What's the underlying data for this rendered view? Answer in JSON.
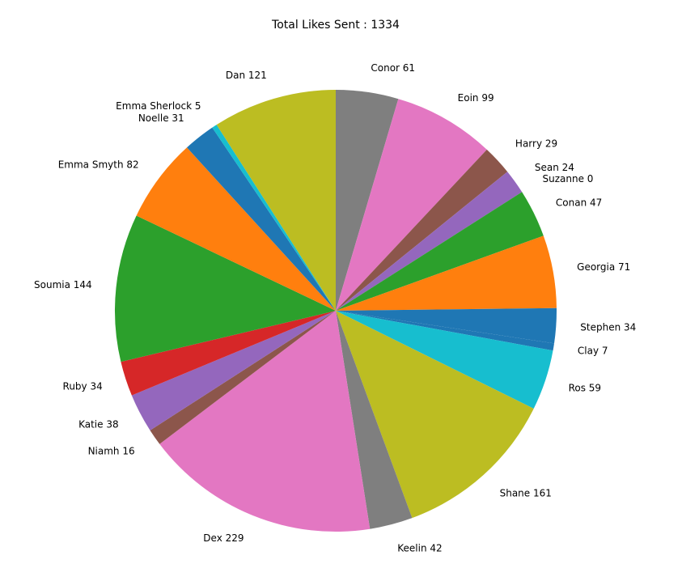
{
  "chart_data": {
    "type": "pie",
    "title": "Total Likes Sent : 1334",
    "start_angle_deg": 90,
    "direction": "clockwise",
    "slices": [
      {
        "name": "Conor",
        "value": 61,
        "label": "Conor 61",
        "color": "#7f7f7f"
      },
      {
        "name": "Eoin",
        "value": 99,
        "label": "Eoin 99",
        "color": "#e377c2"
      },
      {
        "name": "Harry",
        "value": 29,
        "label": "Harry 29",
        "color": "#8c564b"
      },
      {
        "name": "Sean",
        "value": 24,
        "label": "Sean 24",
        "color": "#9467bd"
      },
      {
        "name": "Suzanne",
        "value": 0,
        "label": "Suzanne 0",
        "color": "#d62728"
      },
      {
        "name": "Conan",
        "value": 47,
        "label": "Conan 47",
        "color": "#2ca02c"
      },
      {
        "name": "Georgia",
        "value": 71,
        "label": "Georgia 71",
        "color": "#ff7f0e"
      },
      {
        "name": "Stephen",
        "value": 34,
        "label": "Stephen 34",
        "color": "#1f77b4"
      },
      {
        "name": "Clay",
        "value": 7,
        "label": "Clay 7",
        "color": "#1f77b4"
      },
      {
        "name": "Ros",
        "value": 59,
        "label": "Ros 59",
        "color": "#17becf"
      },
      {
        "name": "Shane",
        "value": 161,
        "label": "Shane 161",
        "color": "#bcbd22"
      },
      {
        "name": "Keelin",
        "value": 42,
        "label": "Keelin 42",
        "color": "#7f7f7f"
      },
      {
        "name": "Dex",
        "value": 229,
        "label": "Dex 229",
        "color": "#e377c2"
      },
      {
        "name": "Niamh",
        "value": 16,
        "label": "Niamh 16",
        "color": "#8c564b"
      },
      {
        "name": "Katie",
        "value": 38,
        "label": "Katie 38",
        "color": "#9467bd"
      },
      {
        "name": "Ruby",
        "value": 34,
        "label": "Ruby 34",
        "color": "#d62728"
      },
      {
        "name": "Soumia",
        "value": 144,
        "label": "Soumia 144",
        "color": "#2ca02c"
      },
      {
        "name": "Emma Smyth",
        "value": 82,
        "label": "Emma Smyth 82",
        "color": "#ff7f0e"
      },
      {
        "name": "Noelle",
        "value": 31,
        "label": "Noelle 31",
        "color": "#1f77b4"
      },
      {
        "name": "Emma Sherlock",
        "value": 5,
        "label": "Emma Sherlock 5",
        "color": "#17becf"
      },
      {
        "name": "Dan",
        "value": 121,
        "label": "Dan 121",
        "color": "#bcbd22"
      }
    ]
  }
}
